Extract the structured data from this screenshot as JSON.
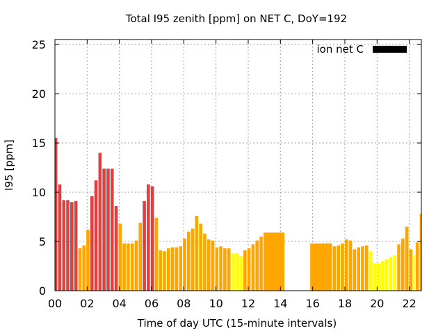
{
  "chart_data": {
    "type": "bar",
    "title": "Total I95 zenith [ppm] on NET C, DoY=192",
    "xlabel": "Time of day UTC (15-minute intervals)",
    "ylabel": "I95 [ppm]",
    "xlim": [
      0,
      22.75
    ],
    "ylim": [
      0,
      25.5
    ],
    "x_ticks": [
      0,
      2,
      4,
      6,
      8,
      10,
      12,
      14,
      16,
      18,
      20,
      22
    ],
    "x_tick_labels": [
      "00",
      "02",
      "04",
      "06",
      "08",
      "10",
      "12",
      "14",
      "16",
      "18",
      "20",
      "22"
    ],
    "y_ticks": [
      0,
      5,
      10,
      15,
      20,
      25
    ],
    "y_tick_labels": [
      "0",
      "5",
      "10",
      "15",
      "20",
      "25"
    ],
    "grid": true,
    "legend": {
      "label": "ion net C",
      "placement": "top-right",
      "color": "#000000"
    },
    "colors": {
      "red": "#e04040",
      "orange": "#ffa500",
      "yellow": "#ffff00"
    },
    "series": [
      {
        "bars": [
          {
            "x0": 0.0,
            "x1": 0.15,
            "value": 15.5,
            "color": "red"
          },
          {
            "x0": 0.2,
            "x1": 0.4,
            "value": 10.8,
            "color": "red"
          },
          {
            "x0": 0.45,
            "x1": 0.65,
            "value": 9.2,
            "color": "red"
          },
          {
            "x0": 0.7,
            "x1": 0.9,
            "value": 9.2,
            "color": "red"
          },
          {
            "x0": 0.95,
            "x1": 1.15,
            "value": 9.0,
            "color": "red"
          },
          {
            "x0": 1.2,
            "x1": 1.4,
            "value": 9.1,
            "color": "red"
          },
          {
            "x0": 1.45,
            "x1": 1.65,
            "value": 4.3,
            "color": "orange"
          },
          {
            "x0": 1.7,
            "x1": 1.9,
            "value": 4.6,
            "color": "orange"
          },
          {
            "x0": 1.95,
            "x1": 2.15,
            "value": 6.2,
            "color": "orange"
          },
          {
            "x0": 2.2,
            "x1": 2.4,
            "value": 9.6,
            "color": "red"
          },
          {
            "x0": 2.45,
            "x1": 2.65,
            "value": 11.2,
            "color": "red"
          },
          {
            "x0": 2.7,
            "x1": 2.9,
            "value": 14.0,
            "color": "red"
          },
          {
            "x0": 2.95,
            "x1": 3.15,
            "value": 12.4,
            "color": "red"
          },
          {
            "x0": 3.2,
            "x1": 3.4,
            "value": 12.4,
            "color": "red"
          },
          {
            "x0": 3.45,
            "x1": 3.65,
            "value": 12.4,
            "color": "red"
          },
          {
            "x0": 3.7,
            "x1": 3.9,
            "value": 8.6,
            "color": "red"
          },
          {
            "x0": 3.95,
            "x1": 4.15,
            "value": 6.8,
            "color": "orange"
          },
          {
            "x0": 4.2,
            "x1": 4.4,
            "value": 4.8,
            "color": "orange"
          },
          {
            "x0": 4.45,
            "x1": 4.65,
            "value": 4.8,
            "color": "orange"
          },
          {
            "x0": 4.7,
            "x1": 4.9,
            "value": 4.8,
            "color": "orange"
          },
          {
            "x0": 4.95,
            "x1": 5.15,
            "value": 5.1,
            "color": "orange"
          },
          {
            "x0": 5.2,
            "x1": 5.4,
            "value": 6.9,
            "color": "orange"
          },
          {
            "x0": 5.45,
            "x1": 5.65,
            "value": 9.1,
            "color": "red"
          },
          {
            "x0": 5.7,
            "x1": 5.9,
            "value": 10.8,
            "color": "red"
          },
          {
            "x0": 5.95,
            "x1": 6.15,
            "value": 10.6,
            "color": "red"
          },
          {
            "x0": 6.2,
            "x1": 6.4,
            "value": 7.4,
            "color": "orange"
          },
          {
            "x0": 6.45,
            "x1": 6.65,
            "value": 4.1,
            "color": "orange"
          },
          {
            "x0": 6.7,
            "x1": 6.9,
            "value": 4.0,
            "color": "orange"
          },
          {
            "x0": 6.95,
            "x1": 7.15,
            "value": 4.3,
            "color": "orange"
          },
          {
            "x0": 7.2,
            "x1": 7.4,
            "value": 4.4,
            "color": "orange"
          },
          {
            "x0": 7.45,
            "x1": 7.65,
            "value": 4.4,
            "color": "orange"
          },
          {
            "x0": 7.7,
            "x1": 7.9,
            "value": 4.5,
            "color": "orange"
          },
          {
            "x0": 7.95,
            "x1": 8.15,
            "value": 5.3,
            "color": "orange"
          },
          {
            "x0": 8.2,
            "x1": 8.4,
            "value": 6.0,
            "color": "orange"
          },
          {
            "x0": 8.45,
            "x1": 8.65,
            "value": 6.3,
            "color": "orange"
          },
          {
            "x0": 8.7,
            "x1": 8.9,
            "value": 7.6,
            "color": "orange"
          },
          {
            "x0": 8.95,
            "x1": 9.15,
            "value": 6.8,
            "color": "orange"
          },
          {
            "x0": 9.2,
            "x1": 9.4,
            "value": 5.8,
            "color": "orange"
          },
          {
            "x0": 9.45,
            "x1": 9.65,
            "value": 5.2,
            "color": "orange"
          },
          {
            "x0": 9.7,
            "x1": 9.9,
            "value": 5.1,
            "color": "orange"
          },
          {
            "x0": 9.95,
            "x1": 10.15,
            "value": 4.4,
            "color": "orange"
          },
          {
            "x0": 10.2,
            "x1": 10.4,
            "value": 4.5,
            "color": "orange"
          },
          {
            "x0": 10.45,
            "x1": 10.65,
            "value": 4.3,
            "color": "orange"
          },
          {
            "x0": 10.7,
            "x1": 10.9,
            "value": 4.3,
            "color": "orange"
          },
          {
            "x0": 10.95,
            "x1": 11.15,
            "value": 3.8,
            "color": "yellow"
          },
          {
            "x0": 11.2,
            "x1": 11.4,
            "value": 3.8,
            "color": "yellow"
          },
          {
            "x0": 11.45,
            "x1": 11.65,
            "value": 3.5,
            "color": "yellow"
          },
          {
            "x0": 11.7,
            "x1": 11.9,
            "value": 4.1,
            "color": "orange"
          },
          {
            "x0": 11.95,
            "x1": 12.15,
            "value": 4.3,
            "color": "orange"
          },
          {
            "x0": 12.2,
            "x1": 12.4,
            "value": 4.7,
            "color": "orange"
          },
          {
            "x0": 12.45,
            "x1": 12.65,
            "value": 5.1,
            "color": "orange"
          },
          {
            "x0": 12.7,
            "x1": 12.9,
            "value": 5.5,
            "color": "orange"
          },
          {
            "x0": 12.95,
            "x1": 14.25,
            "value": 5.9,
            "color": "orange"
          },
          {
            "x0": 15.85,
            "x1": 17.2,
            "value": 4.8,
            "color": "orange"
          },
          {
            "x0": 17.25,
            "x1": 17.45,
            "value": 4.5,
            "color": "orange"
          },
          {
            "x0": 17.5,
            "x1": 17.7,
            "value": 4.6,
            "color": "orange"
          },
          {
            "x0": 17.75,
            "x1": 17.95,
            "value": 4.8,
            "color": "orange"
          },
          {
            "x0": 18.0,
            "x1": 18.2,
            "value": 5.2,
            "color": "orange"
          },
          {
            "x0": 18.25,
            "x1": 18.45,
            "value": 5.1,
            "color": "orange"
          },
          {
            "x0": 18.5,
            "x1": 18.7,
            "value": 4.2,
            "color": "orange"
          },
          {
            "x0": 18.75,
            "x1": 18.95,
            "value": 4.4,
            "color": "orange"
          },
          {
            "x0": 19.0,
            "x1": 19.2,
            "value": 4.5,
            "color": "orange"
          },
          {
            "x0": 19.25,
            "x1": 19.45,
            "value": 4.6,
            "color": "orange"
          },
          {
            "x0": 19.5,
            "x1": 19.7,
            "value": 4.0,
            "color": "yellow"
          },
          {
            "x0": 19.75,
            "x1": 19.95,
            "value": 2.8,
            "color": "yellow"
          },
          {
            "x0": 20.0,
            "x1": 20.2,
            "value": 2.8,
            "color": "yellow"
          },
          {
            "x0": 20.25,
            "x1": 20.45,
            "value": 3.0,
            "color": "yellow"
          },
          {
            "x0": 20.5,
            "x1": 20.7,
            "value": 3.2,
            "color": "yellow"
          },
          {
            "x0": 20.75,
            "x1": 20.95,
            "value": 3.4,
            "color": "yellow"
          },
          {
            "x0": 21.0,
            "x1": 21.2,
            "value": 3.6,
            "color": "yellow"
          },
          {
            "x0": 21.25,
            "x1": 21.45,
            "value": 4.7,
            "color": "orange"
          },
          {
            "x0": 21.5,
            "x1": 21.7,
            "value": 5.3,
            "color": "orange"
          },
          {
            "x0": 21.75,
            "x1": 21.95,
            "value": 6.5,
            "color": "orange"
          },
          {
            "x0": 22.0,
            "x1": 22.2,
            "value": 4.2,
            "color": "orange"
          },
          {
            "x0": 22.25,
            "x1": 22.35,
            "value": 3.6,
            "color": "yellow"
          },
          {
            "x0": 22.4,
            "x1": 22.6,
            "value": 4.9,
            "color": "orange"
          },
          {
            "x0": 22.65,
            "x1": 22.75,
            "value": 7.8,
            "color": "orange"
          }
        ]
      }
    ]
  }
}
